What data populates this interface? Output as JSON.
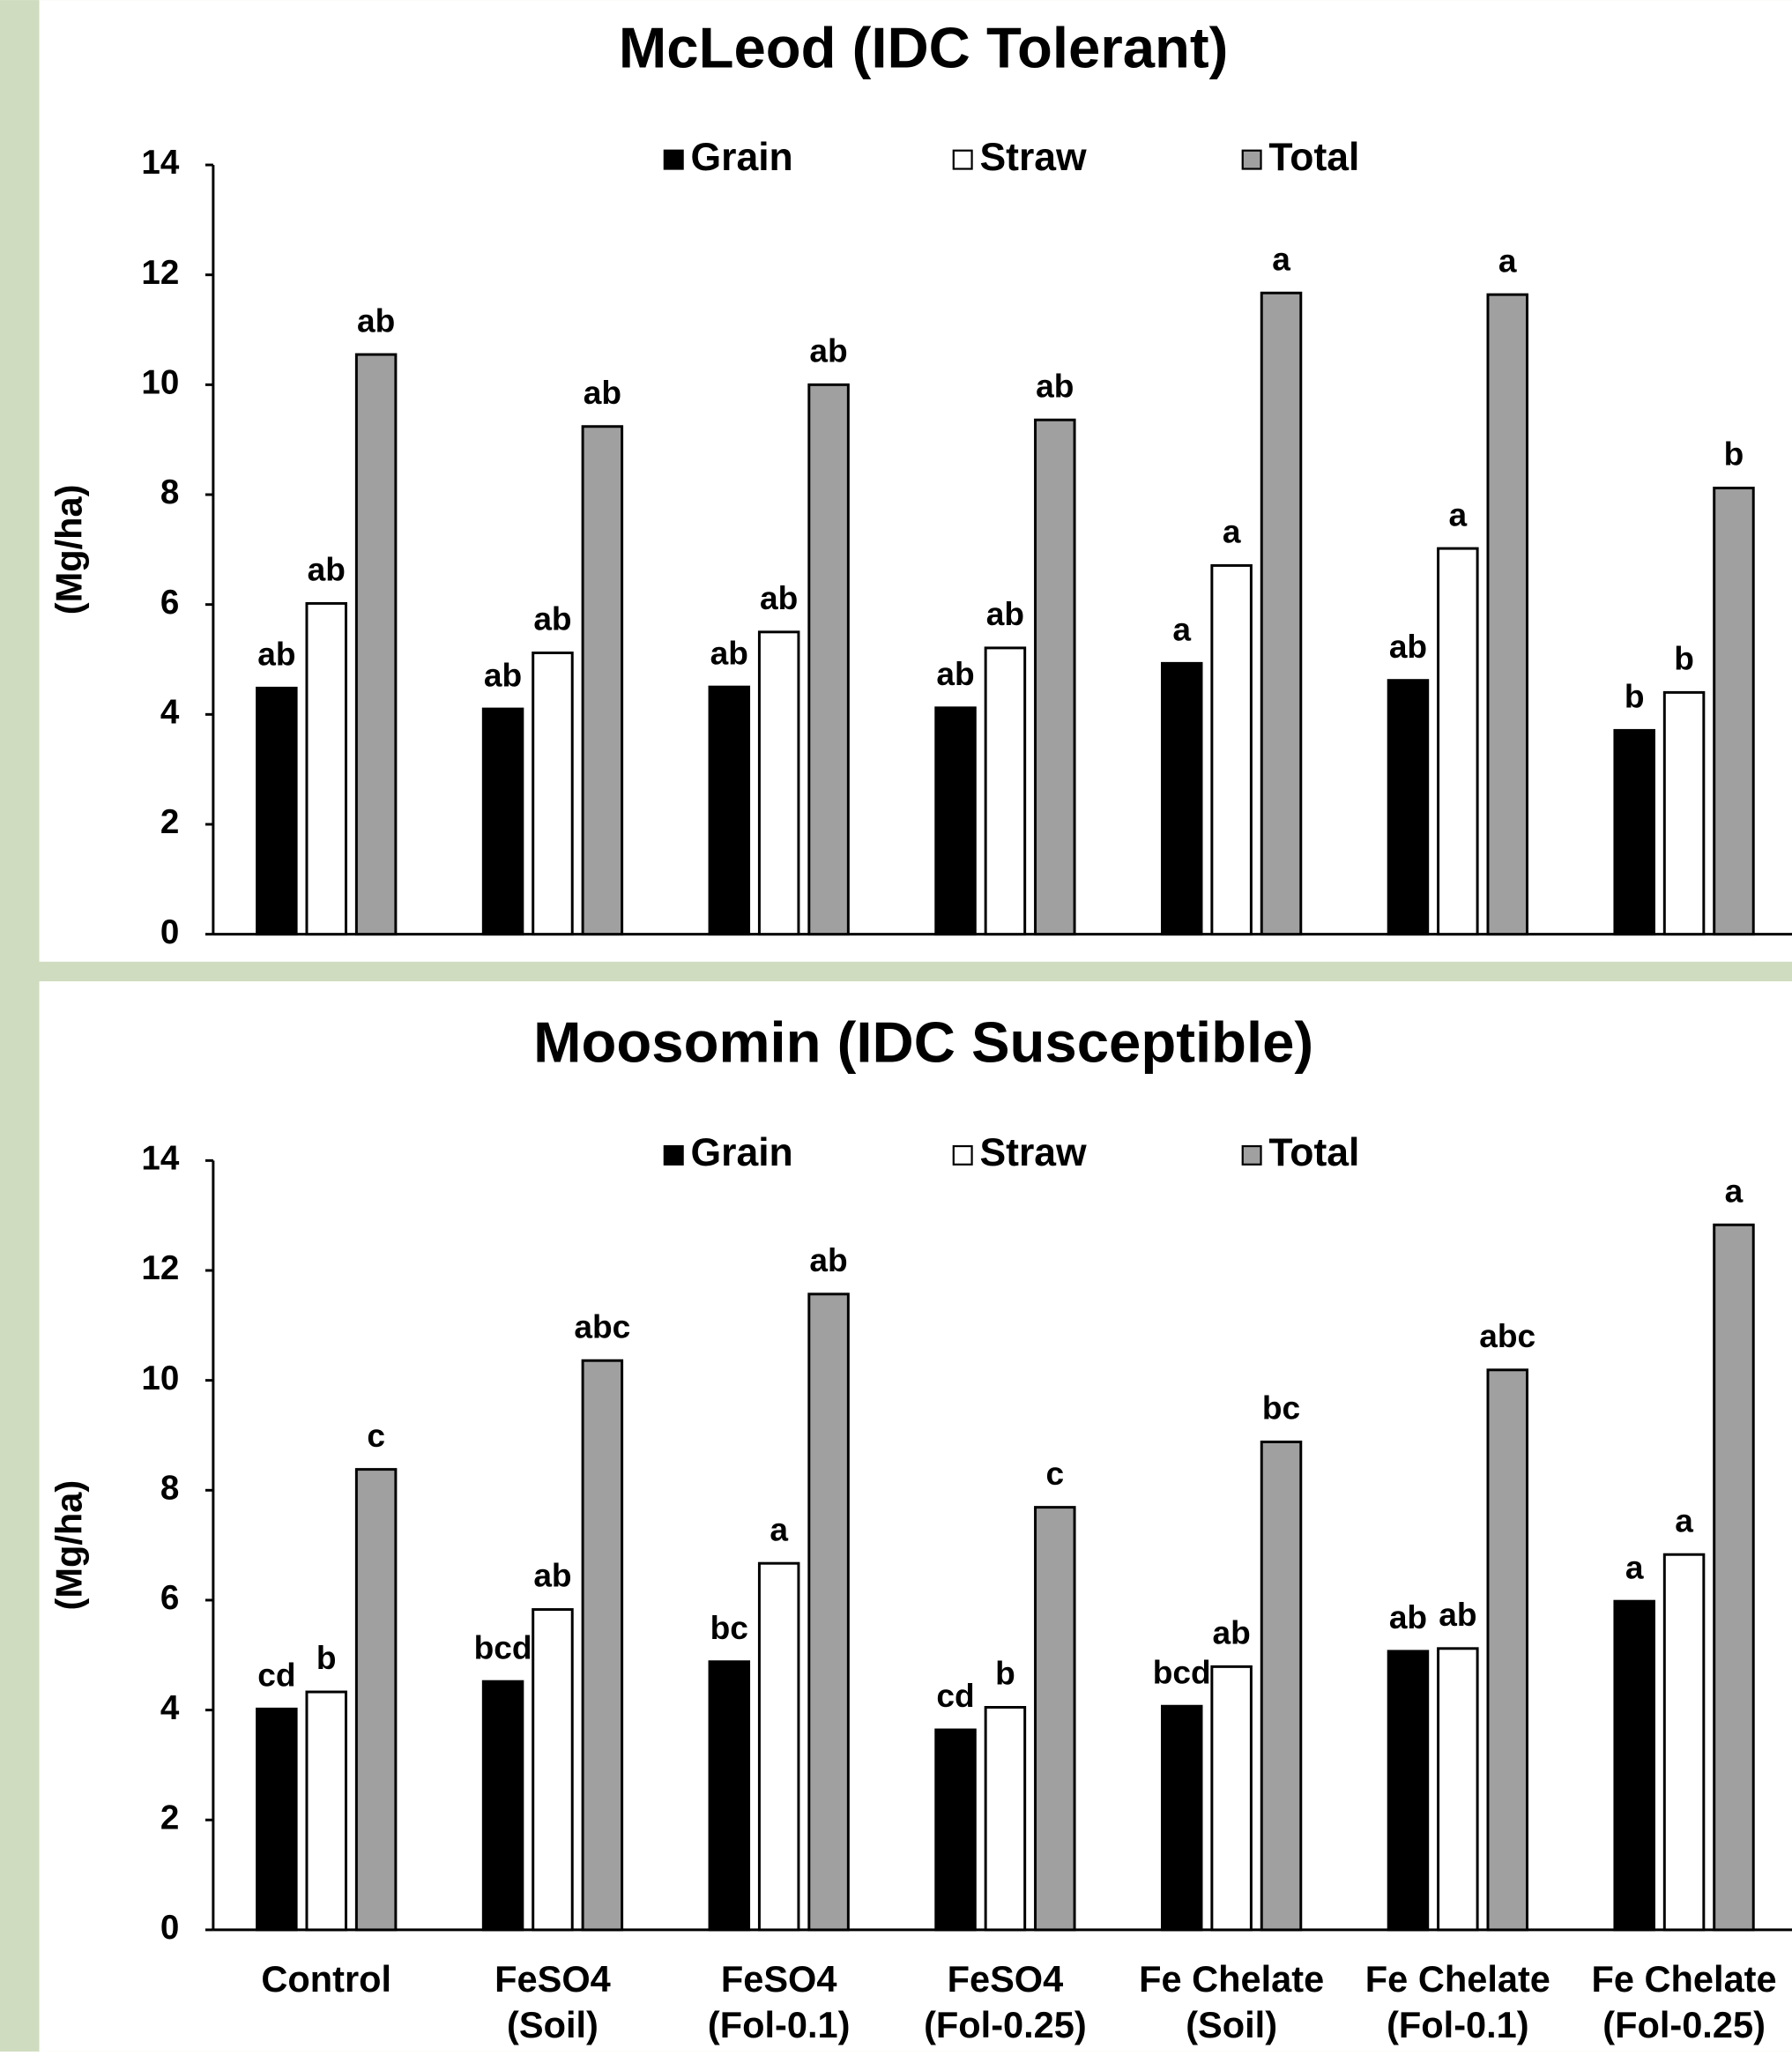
{
  "chart_data": [
    {
      "type": "bar",
      "title": "McLeod (IDC Tolerant)",
      "y_label": "(Mg/ha)",
      "categories": [
        null,
        null,
        null,
        null,
        null,
        null,
        null
      ],
      "series": [
        {
          "name": "Grain",
          "color": "#000000",
          "values": [
            4.48,
            4.1,
            4.5,
            4.12,
            4.93,
            4.62,
            3.71
          ],
          "letters": [
            "ab",
            "ab",
            "ab",
            "ab",
            "a",
            "ab",
            "b"
          ]
        },
        {
          "name": "Straw",
          "color": "#ffffff",
          "values": [
            6.02,
            5.12,
            5.5,
            5.21,
            6.71,
            7.02,
            4.4
          ],
          "letters": [
            "ab",
            "ab",
            "ab",
            "ab",
            "a",
            "a",
            "b"
          ]
        },
        {
          "name": "Total",
          "color": "#a0a0a0",
          "values": [
            10.55,
            9.24,
            10.0,
            9.36,
            11.67,
            11.64,
            8.12
          ],
          "letters": [
            "ab",
            "ab",
            "ab",
            "ab",
            "a",
            "a",
            "b"
          ]
        }
      ],
      "ylim": [
        0,
        14
      ],
      "yticks": [
        0,
        2,
        4,
        6,
        8,
        10,
        12,
        14
      ],
      "grid": false,
      "legend": "top"
    },
    {
      "type": "bar",
      "title": "Moosomin (IDC Susceptible)",
      "y_label": "(Mg/ha)",
      "categories": [
        "Control",
        "FeSO4\n(Soil)",
        "FeSO4\n(Fol-0.1)",
        "FeSO4\n(Fol-0.25)",
        "Fe Chelate\n(Soil)",
        "Fe Chelate\n(Fol-0.1)",
        "Fe Chelate\n(Fol-0.25)"
      ],
      "series": [
        {
          "name": "Grain",
          "color": "#000000",
          "values": [
            4.02,
            4.52,
            4.88,
            3.64,
            4.07,
            5.07,
            5.98
          ],
          "letters": [
            "cd",
            "bcd",
            "bc",
            "cd",
            "bcd",
            "ab",
            "a"
          ]
        },
        {
          "name": "Straw",
          "color": "#ffffff",
          "values": [
            4.33,
            5.83,
            6.67,
            4.05,
            4.79,
            5.12,
            6.83
          ],
          "letters": [
            "b",
            "ab",
            "a",
            "b",
            "ab",
            "ab",
            "a"
          ]
        },
        {
          "name": "Total",
          "color": "#a0a0a0",
          "values": [
            8.38,
            10.36,
            11.57,
            7.69,
            8.88,
            10.19,
            12.83
          ],
          "letters": [
            "c",
            "abc",
            "ab",
            "c",
            "bc",
            "abc",
            "a"
          ]
        }
      ],
      "ylim": [
        0,
        14
      ],
      "yticks": [
        0,
        2,
        4,
        6,
        8,
        10,
        12,
        14
      ],
      "grid": false,
      "legend": "top"
    }
  ]
}
